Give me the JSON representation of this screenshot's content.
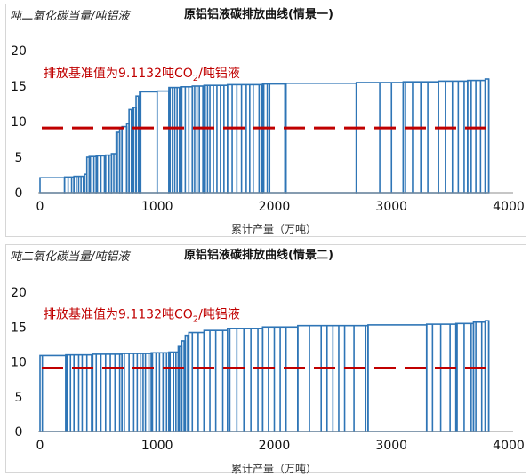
{
  "chart_data": [
    {
      "type": "bar",
      "title": "原铝铝液碳排放曲线(情景一)",
      "ylabel": "吨二氧化碳当量/吨铝液",
      "xlabel": "累计产量（万吨）",
      "xlim": [
        0,
        4000
      ],
      "ylim": [
        0,
        20
      ],
      "xticks": [
        "0",
        "1000",
        "2000",
        "3000",
        "4000"
      ],
      "yticks": [
        "0",
        "5",
        "10",
        "15",
        "20"
      ],
      "baseline": 9.1132,
      "annotation": {
        "text": "排放基准值为9.1132吨CO",
        "sub": "2",
        "tail": "/吨铝液"
      },
      "series_color": "#2e75b6",
      "baseline_color": "#c00000",
      "grid": false,
      "steps": [
        [
          0,
          210,
          2.1
        ],
        [
          210,
          290,
          2.2
        ],
        [
          290,
          380,
          2.3
        ],
        [
          380,
          400,
          2.6
        ],
        [
          400,
          420,
          5.0
        ],
        [
          420,
          480,
          5.1
        ],
        [
          480,
          560,
          5.2
        ],
        [
          560,
          610,
          5.3
        ],
        [
          610,
          650,
          5.5
        ],
        [
          650,
          680,
          8.5
        ],
        [
          680,
          700,
          9.0
        ],
        [
          700,
          740,
          9.3
        ],
        [
          740,
          760,
          9.7
        ],
        [
          760,
          790,
          11.7
        ],
        [
          790,
          820,
          12.0
        ],
        [
          820,
          850,
          13.6
        ],
        [
          850,
          1000,
          14.2
        ],
        [
          1000,
          1100,
          14.3
        ],
        [
          1100,
          1200,
          14.8
        ],
        [
          1200,
          1300,
          14.9
        ],
        [
          1300,
          1400,
          15.0
        ],
        [
          1400,
          1600,
          15.1
        ],
        [
          1600,
          1900,
          15.2
        ],
        [
          1900,
          2100,
          15.3
        ],
        [
          2100,
          2700,
          15.4
        ],
        [
          2700,
          3100,
          15.5
        ],
        [
          3100,
          3400,
          15.6
        ],
        [
          3400,
          3650,
          15.7
        ],
        [
          3650,
          3800,
          15.8
        ],
        [
          3800,
          3830,
          16.0
        ]
      ],
      "dividers": [
        210,
        240,
        270,
        290,
        310,
        330,
        350,
        370,
        400,
        430,
        460,
        490,
        520,
        550,
        590,
        630,
        660,
        700,
        740,
        780,
        800,
        820,
        840,
        860,
        1110,
        1130,
        1150,
        1170,
        1190,
        1210,
        1240,
        1270,
        1300,
        1320,
        1340,
        1360,
        1390,
        1410,
        1430,
        1450,
        1480,
        1510,
        1540,
        1570,
        1600,
        1640,
        1680,
        1720,
        1760,
        1790,
        1820,
        1870,
        1890,
        1910,
        1940,
        1960,
        2090,
        2700,
        2900,
        3000,
        3120,
        3180,
        3250,
        3310,
        3400,
        3460,
        3520,
        3570,
        3620,
        3680,
        3720,
        3760,
        3800,
        3830
      ]
    },
    {
      "type": "bar",
      "title": "原铝铝液碳排放曲线(情景二)",
      "ylabel": "吨二氧化碳当量/吨铝液",
      "xlabel": "累计产量（万吨）",
      "xlim": [
        0,
        4000
      ],
      "ylim": [
        0,
        20
      ],
      "xticks": [
        "0",
        "1000",
        "2000",
        "3000",
        "4000"
      ],
      "yticks": [
        "0",
        "5",
        "10",
        "15",
        "20"
      ],
      "baseline": 9.1132,
      "annotation": {
        "text": "排放基准值为9.1132吨CO",
        "sub": "2",
        "tail": "/吨铝液"
      },
      "series_color": "#2e75b6",
      "baseline_color": "#c00000",
      "grid": false,
      "steps": [
        [
          0,
          220,
          10.9
        ],
        [
          220,
          450,
          11.0
        ],
        [
          450,
          700,
          11.1
        ],
        [
          700,
          950,
          11.2
        ],
        [
          950,
          1100,
          11.3
        ],
        [
          1100,
          1180,
          11.4
        ],
        [
          1180,
          1210,
          12.2
        ],
        [
          1210,
          1240,
          13.0
        ],
        [
          1240,
          1270,
          13.8
        ],
        [
          1270,
          1400,
          14.2
        ],
        [
          1400,
          1600,
          14.5
        ],
        [
          1600,
          1900,
          14.8
        ],
        [
          1900,
          2200,
          15.0
        ],
        [
          2200,
          2800,
          15.2
        ],
        [
          2800,
          3300,
          15.3
        ],
        [
          3300,
          3550,
          15.4
        ],
        [
          3550,
          3700,
          15.5
        ],
        [
          3700,
          3800,
          15.7
        ],
        [
          3800,
          3830,
          15.9
        ]
      ],
      "dividers": [
        20,
        230,
        260,
        290,
        330,
        360,
        400,
        440,
        480,
        520,
        560,
        600,
        640,
        680,
        700,
        720,
        760,
        800,
        830,
        860,
        880,
        900,
        930,
        960,
        990,
        1020,
        1050,
        1080,
        1110,
        1140,
        1160,
        1190,
        1230,
        1260,
        1300,
        1350,
        1400,
        1450,
        1500,
        1560,
        1620,
        1680,
        1740,
        1800,
        1860,
        1900,
        1950,
        2000,
        2050,
        2100,
        2200,
        2300,
        2400,
        2450,
        2500,
        2550,
        2600,
        2680,
        2780,
        3300,
        3350,
        3420,
        3500,
        3560,
        3620,
        3680,
        3720,
        3770,
        3800,
        3830
      ]
    }
  ]
}
